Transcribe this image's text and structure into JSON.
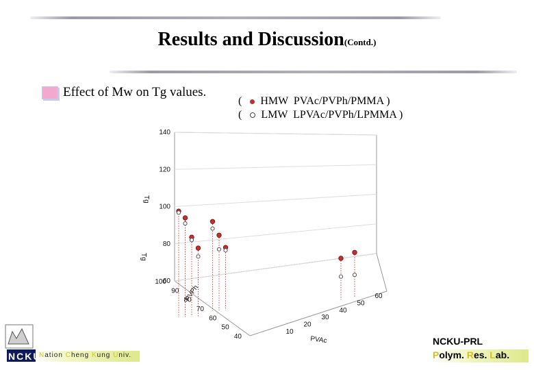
{
  "header": {
    "title_main": "Results and Discussion",
    "title_suffix": "(Contd.)"
  },
  "bullet": {
    "text": "Effect of Mw on Tg values."
  },
  "legend": {
    "open": "(",
    "close": ")",
    "hmw": "HMW  PVAc/PVPh/PMMA",
    "lmw": "LMW  LPVAc/PVPh/LPMMA",
    "hmw_color": "#c0302f",
    "lmw_color": "#ffffff"
  },
  "chart_data": {
    "type": "scatter",
    "subtype": "3d-scatter-with-drop-lines",
    "z_axis": {
      "label": "Tg",
      "ticks": [
        "140",
        "120",
        "100",
        "80",
        "60"
      ]
    },
    "y_axis_label": "PVPh",
    "y_ticks": [
      "100",
      "90",
      "80",
      "70",
      "60",
      "50",
      "40"
    ],
    "x_axis_label": "PVAc",
    "x_ticks": [
      "10",
      "20",
      "30",
      "40",
      "50",
      "60"
    ],
    "series": [
      {
        "name": "HMW  PVAc/PVPh/PMMA",
        "color": "#c0302f",
        "points": [
          [
            0,
            70,
            116
          ],
          [
            0,
            60,
            111
          ],
          [
            10,
            60,
            104
          ],
          [
            0,
            50,
            97
          ],
          [
            10,
            50,
            94
          ],
          [
            0,
            40,
            89
          ],
          [
            10,
            40,
            85
          ],
          [
            45,
            10,
            70
          ],
          [
            50,
            10,
            72
          ]
        ]
      },
      {
        "name": "LMW  LPVAc/PVPh/LPMMA",
        "color": "#ffffff",
        "points": [
          [
            0,
            70,
            115
          ],
          [
            0,
            60,
            107
          ],
          [
            10,
            60,
            99
          ],
          [
            0,
            50,
            95
          ],
          [
            10,
            50,
            84
          ],
          [
            0,
            40,
            83
          ],
          [
            10,
            40,
            83
          ],
          [
            45,
            10,
            57
          ],
          [
            50,
            10,
            56
          ]
        ]
      }
    ]
  },
  "footer": {
    "left_text": [
      "N",
      "ation ",
      "C",
      "heng ",
      "K",
      "ung ",
      "U",
      "niv."
    ],
    "logo_text": "NCKU",
    "right_top": "NCKU-PRL",
    "right_bottom": [
      "P",
      "olym. ",
      "R",
      "es. ",
      "L",
      "ab."
    ]
  }
}
